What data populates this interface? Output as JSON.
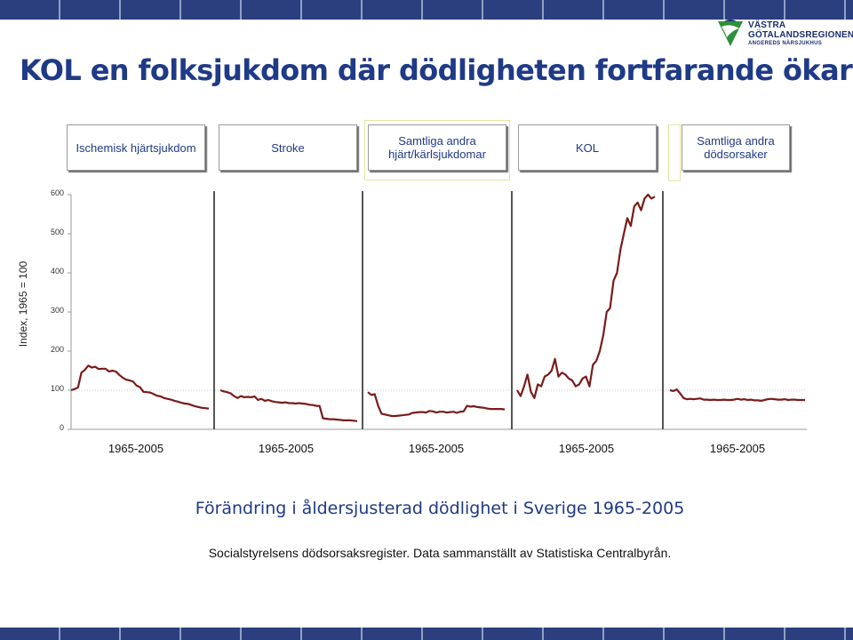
{
  "colors": {
    "band": "#2b3f7e",
    "title": "#1f3a86",
    "line": "#7a1b1b",
    "logo_green": "#2f8f3a"
  },
  "logo": {
    "line1": "VÄSTRA",
    "line2": "GÖTALANDSREGIONEN",
    "line3": "ANGEREDS NÄRSJUKHUS",
    "icon": "region-logo-icon"
  },
  "title": "KOL en folksjukdom där dödligheten fortfarande ökar",
  "caption": "Förändring i åldersjusterad dödlighet i Sverige 1965-2005",
  "source": "Socialstyrelsens dödsorsaksregister. Data sammanställt av Statistiska Centralbyrån.",
  "chart_data": {
    "type": "line",
    "title": "",
    "ylabel": "Index, 1965 = 100",
    "ylim": [
      0,
      600
    ],
    "yticks": [
      "0",
      "100",
      "200",
      "300",
      "400",
      "500",
      "600"
    ],
    "x": [
      1965,
      1966,
      1967,
      1968,
      1969,
      1970,
      1971,
      1972,
      1973,
      1974,
      1975,
      1976,
      1977,
      1978,
      1979,
      1980,
      1981,
      1982,
      1983,
      1984,
      1985,
      1986,
      1987,
      1988,
      1989,
      1990,
      1991,
      1992,
      1993,
      1994,
      1995,
      1996,
      1997,
      1998,
      1999,
      2000,
      2001,
      2002,
      2003,
      2004,
      2005
    ],
    "series": [
      {
        "label": "Ischemisk hjärtsjukdom",
        "xlabel": "1965-2005",
        "values": [
          100,
          103,
          107,
          145,
          152,
          163,
          158,
          160,
          154,
          155,
          155,
          148,
          150,
          148,
          139,
          132,
          127,
          125,
          122,
          112,
          108,
          96,
          95,
          94,
          90,
          86,
          84,
          80,
          78,
          76,
          73,
          71,
          68,
          66,
          65,
          62,
          59,
          57,
          55,
          54,
          53
        ]
      },
      {
        "label": "Stroke",
        "xlabel": "1965-2005",
        "values": [
          100,
          97,
          95,
          92,
          85,
          80,
          85,
          82,
          83,
          82,
          84,
          75,
          78,
          73,
          75,
          72,
          70,
          69,
          68,
          69,
          67,
          67,
          66,
          67,
          66,
          65,
          63,
          62,
          60,
          60,
          28,
          27,
          26,
          26,
          25,
          24,
          23,
          23,
          23,
          22,
          21
        ]
      },
      {
        "label": "Samtliga andra hjärt/kärlsjukdomar",
        "xlabel": "1965-2005",
        "values": [
          95,
          88,
          90,
          60,
          40,
          38,
          36,
          34,
          34,
          35,
          36,
          37,
          38,
          42,
          43,
          44,
          44,
          43,
          47,
          46,
          43,
          45,
          45,
          43,
          44,
          45,
          42,
          45,
          46,
          60,
          58,
          59,
          57,
          56,
          55,
          53,
          52,
          52,
          52,
          52,
          51
        ]
      },
      {
        "label": "KOL",
        "xlabel": "1965-2005",
        "values": [
          100,
          85,
          110,
          140,
          96,
          80,
          115,
          110,
          135,
          140,
          150,
          180,
          135,
          145,
          140,
          130,
          125,
          110,
          115,
          130,
          135,
          110,
          165,
          175,
          200,
          240,
          300,
          310,
          380,
          400,
          460,
          500,
          540,
          520,
          570,
          580,
          560,
          590,
          600,
          590,
          595
        ]
      },
      {
        "label": "Samtliga andra dödsorsaker",
        "xlabel": "1965-2005",
        "values": [
          100,
          98,
          102,
          92,
          80,
          77,
          78,
          77,
          78,
          79,
          76,
          76,
          75,
          76,
          75,
          75,
          76,
          75,
          75,
          76,
          78,
          76,
          77,
          75,
          76,
          74,
          74,
          73,
          75,
          77,
          78,
          77,
          76,
          76,
          77,
          75,
          76,
          76,
          75,
          75,
          75
        ]
      }
    ]
  }
}
